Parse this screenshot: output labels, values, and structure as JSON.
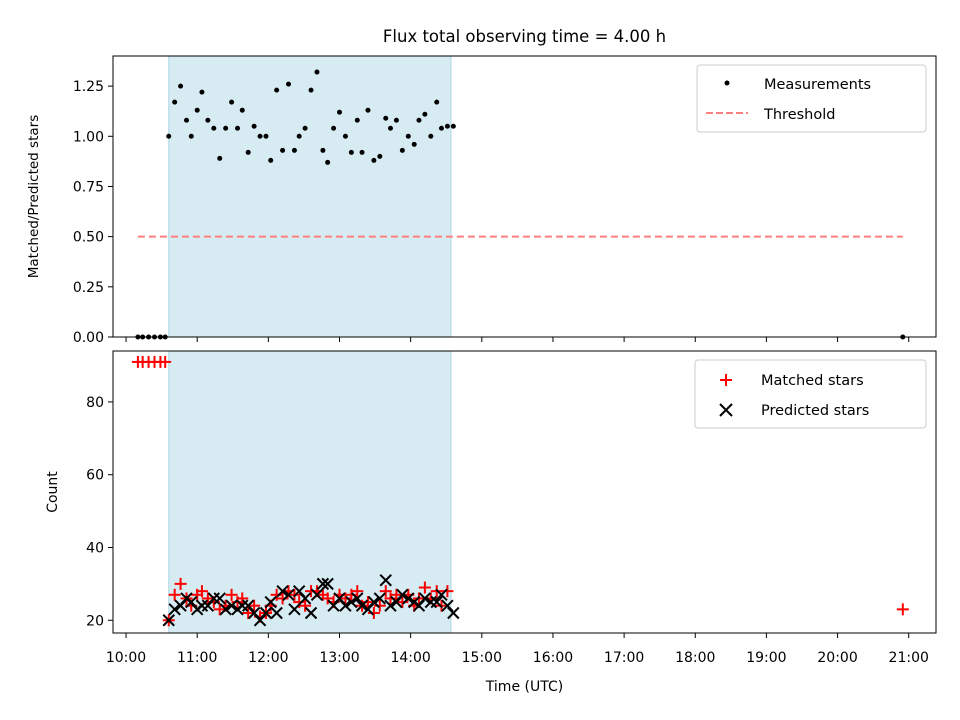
{
  "chart_data": [
    {
      "type": "scatter",
      "title": "Flux total observing time = 4.00 h",
      "xlabel": "",
      "ylabel": "Matched/Predicted stars",
      "xlim": [
        "09:49",
        "21:23"
      ],
      "ylim": [
        0,
        1.4
      ],
      "yticks": [
        0.0,
        0.25,
        0.5,
        0.75,
        1.0,
        1.25
      ],
      "ytick_labels": [
        "0.00",
        "0.25",
        "0.50",
        "0.75",
        "1.00",
        "1.25"
      ],
      "shaded_span": {
        "start": "10:36",
        "end": "14:34",
        "color": "#add8e6"
      },
      "legend": {
        "position": "top-right",
        "entries": [
          "Measurements",
          "Threshold"
        ]
      },
      "threshold": {
        "name": "Threshold",
        "value": 0.5,
        "x": [
          "10:10",
          "20:55"
        ],
        "color": "#ff7f7f"
      },
      "series": [
        {
          "name": "Measurements",
          "color": "#000000",
          "x": [
            "10:10",
            "10:14",
            "10:19",
            "10:24",
            "10:29",
            "10:33",
            "10:36",
            "10:41",
            "10:46",
            "10:51",
            "10:55",
            "11:00",
            "11:04",
            "11:09",
            "11:14",
            "11:19",
            "11:24",
            "11:29",
            "11:34",
            "11:38",
            "11:43",
            "11:48",
            "11:53",
            "11:58",
            "12:02",
            "12:07",
            "12:12",
            "12:17",
            "12:22",
            "12:26",
            "12:31",
            "12:36",
            "12:41",
            "12:46",
            "12:50",
            "12:55",
            "13:00",
            "13:05",
            "13:10",
            "13:15",
            "13:19",
            "13:24",
            "13:29",
            "13:34",
            "13:39",
            "13:43",
            "13:48",
            "13:53",
            "13:58",
            "14:03",
            "14:07",
            "14:12",
            "14:17",
            "14:22",
            "14:26",
            "14:31",
            "14:36",
            "20:55"
          ],
          "y": [
            0.0,
            0.0,
            0.0,
            0.0,
            0.0,
            0.0,
            1.0,
            1.17,
            1.25,
            1.08,
            1.0,
            1.13,
            1.22,
            1.08,
            1.04,
            0.89,
            1.04,
            1.17,
            1.04,
            1.13,
            0.92,
            1.05,
            1.0,
            1.0,
            0.88,
            1.23,
            0.93,
            1.26,
            0.93,
            1.0,
            1.04,
            1.23,
            1.32,
            0.93,
            0.87,
            1.04,
            1.12,
            1.0,
            0.92,
            1.08,
            0.92,
            1.13,
            0.88,
            0.9,
            1.09,
            1.04,
            1.08,
            0.93,
            1.0,
            0.96,
            1.08,
            1.11,
            1.0,
            1.17,
            1.04,
            1.05,
            1.05,
            0.0
          ]
        }
      ]
    },
    {
      "type": "scatter",
      "title": "",
      "xlabel": "Time (UTC)",
      "ylabel": "Count",
      "xlim": [
        "09:49",
        "21:23"
      ],
      "ylim": [
        16.5,
        94
      ],
      "yticks": [
        20,
        40,
        60,
        80
      ],
      "ytick_labels": [
        "20",
        "40",
        "60",
        "80"
      ],
      "xticks": [
        "10:00",
        "11:00",
        "12:00",
        "13:00",
        "14:00",
        "15:00",
        "16:00",
        "17:00",
        "18:00",
        "19:00",
        "20:00",
        "21:00"
      ],
      "shaded_span": {
        "start": "10:36",
        "end": "14:34",
        "color": "#add8e6"
      },
      "legend": {
        "position": "top-right",
        "entries": [
          "Matched stars",
          "Predicted stars"
        ]
      },
      "series": [
        {
          "name": "Matched stars",
          "marker": "plus",
          "color": "#ff0000",
          "x": [
            "10:10",
            "10:14",
            "10:19",
            "10:24",
            "10:29",
            "10:33",
            "10:36",
            "10:41",
            "10:46",
            "10:51",
            "10:55",
            "11:00",
            "11:04",
            "11:09",
            "11:14",
            "11:19",
            "11:24",
            "11:29",
            "11:34",
            "11:38",
            "11:43",
            "11:48",
            "11:53",
            "11:58",
            "12:02",
            "12:07",
            "12:12",
            "12:17",
            "12:22",
            "12:26",
            "12:31",
            "12:36",
            "12:41",
            "12:46",
            "12:50",
            "12:55",
            "13:00",
            "13:05",
            "13:10",
            "13:15",
            "13:19",
            "13:24",
            "13:29",
            "13:34",
            "13:39",
            "13:43",
            "13:48",
            "13:53",
            "13:58",
            "14:03",
            "14:07",
            "14:12",
            "14:17",
            "14:22",
            "14:26",
            "14:31",
            "20:55"
          ],
          "y": [
            91,
            91,
            91,
            91,
            91,
            91,
            20,
            27,
            30,
            26,
            24,
            27,
            28,
            26,
            25,
            23,
            24,
            27,
            25,
            26,
            22,
            24,
            21,
            22,
            24,
            27,
            26,
            28,
            27,
            25,
            24,
            28,
            28,
            27,
            26,
            25,
            27,
            26,
            27,
            28,
            24,
            25,
            22,
            24,
            28,
            26,
            27,
            25,
            27,
            24,
            26,
            29,
            26,
            28,
            24,
            28,
            23
          ]
        },
        {
          "name": "Predicted stars",
          "marker": "x",
          "color": "#000000",
          "x": [
            "10:36",
            "10:41",
            "10:46",
            "10:51",
            "10:55",
            "11:00",
            "11:04",
            "11:09",
            "11:14",
            "11:19",
            "11:24",
            "11:29",
            "11:34",
            "11:38",
            "11:43",
            "11:48",
            "11:53",
            "11:58",
            "12:02",
            "12:07",
            "12:12",
            "12:17",
            "12:22",
            "12:26",
            "12:31",
            "12:36",
            "12:41",
            "12:46",
            "12:50",
            "12:55",
            "13:00",
            "13:05",
            "13:10",
            "13:15",
            "13:19",
            "13:24",
            "13:29",
            "13:34",
            "13:39",
            "13:43",
            "13:48",
            "13:53",
            "13:58",
            "14:03",
            "14:07",
            "14:12",
            "14:17",
            "14:22",
            "14:26",
            "14:31",
            "14:36"
          ],
          "y": [
            20,
            23,
            24,
            26,
            25,
            23,
            24,
            24,
            26,
            26,
            23,
            24,
            23,
            24,
            24,
            22,
            20,
            22,
            25,
            22,
            28,
            27,
            23,
            28,
            26,
            22,
            27,
            30,
            30,
            24,
            26,
            24,
            25,
            26,
            24,
            23,
            25,
            26,
            31,
            24,
            25,
            27,
            26,
            25,
            24,
            26,
            25,
            25,
            27,
            24,
            22
          ]
        }
      ]
    }
  ]
}
